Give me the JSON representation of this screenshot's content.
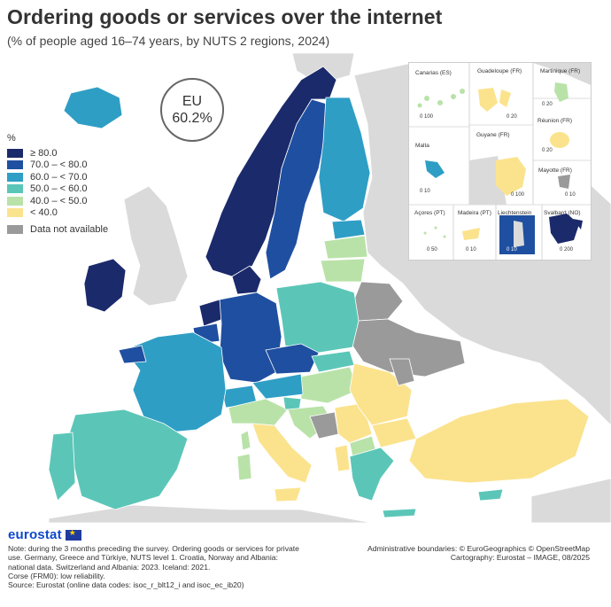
{
  "title": "Ordering goods or services over the internet",
  "subtitle": "(% of people aged 16–74 years, by NUTS 2 regions, 2024)",
  "eu_badge": {
    "label": "EU",
    "value": "60.2%"
  },
  "legend": {
    "heading": "%",
    "classes": [
      {
        "label": "≥ 80.0",
        "color": "#1b2a6b"
      },
      {
        "label": "70.0 – < 80.0",
        "color": "#1f4fa0"
      },
      {
        "label": "60.0 – < 70.0",
        "color": "#2f9ec5"
      },
      {
        "label": "50.0 – < 60.0",
        "color": "#5bc6b8"
      },
      {
        "label": "40.0 – < 50.0",
        "color": "#b9e2a8"
      },
      {
        "label": "< 40.0",
        "color": "#fbe38e"
      }
    ],
    "na": {
      "label": "Data not available",
      "color": "#9a9a9a"
    }
  },
  "colors": {
    "sea": "#ffffff",
    "non_covered": "#dadada",
    "border": "#ffffff"
  },
  "insets": {
    "canarias": "Canarias (ES)",
    "guadeloupe": "Guadeloupe (FR)",
    "martinique": "Martinique (FR)",
    "reunion": "Réunion (FR)",
    "malta": "Malta",
    "guyane": "Guyane (FR)",
    "mayotte": "Mayotte (FR)",
    "acores": "Açores (PT)",
    "madeira": "Madeira (PT)",
    "liechtenstein": "Liechtenstein",
    "svalbard": "Svalbard (NO)"
  },
  "scales": {
    "canarias": "0  100",
    "guadeloupe": "0  20",
    "martinique": "0  20",
    "reunion": "0  20",
    "malta": "0  10",
    "guyane": "0  100",
    "mayotte": "0  10",
    "acores": "0  50",
    "madeira": "0  10",
    "liechtenstein": "0  10",
    "svalbard": "0  200"
  },
  "footer": {
    "logo": "eurostat",
    "note1": "Note: during the 3 months preceding the survey. Ordering goods or services for private use. Germany, Greece and Türkiye, NUTS level 1. Croatia, Norway and Albania: national data. Switzerland and Albania: 2023. Iceland: 2021.",
    "note2": "Corse (FRM0): low reliability.",
    "source": "Source: Eurostat (online data codes: isoc_r_blt12_i and isoc_ec_ib20)",
    "credit1": "Administrative boundaries: © EuroGeographics © OpenStreetMap",
    "credit2": "Cartography: Eurostat – IMAGE, 08/2025"
  }
}
